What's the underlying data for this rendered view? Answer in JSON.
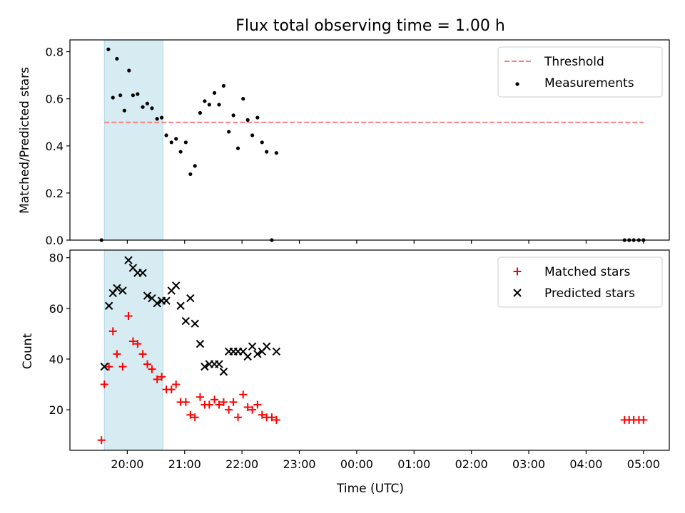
{
  "title": "Flux total observing time = 1.00 h",
  "chart_data": [
    {
      "type": "scatter",
      "panel": "top",
      "title": "Flux total observing time = 1.00 h",
      "xlabel": "",
      "ylabel": "Matched/Predicted stars",
      "x_unit": "hours UTC (values past 24 are the following day)",
      "xlim": [
        19.0,
        29.45
      ],
      "ylim": [
        0,
        0.85
      ],
      "yticks": [
        0.0,
        0.2,
        0.4,
        0.6,
        0.8
      ],
      "ytick_labels": [
        "0.0",
        "0.2",
        "0.4",
        "0.6",
        "0.8"
      ],
      "grid": false,
      "legend": "top-right",
      "shaded_span": [
        19.6,
        20.62
      ],
      "threshold": {
        "name": "Threshold",
        "value": 0.5,
        "x": [
          19.6,
          29.0
        ],
        "color": "#ff7f7f",
        "style": "dashed"
      },
      "series": [
        {
          "name": "Measurements",
          "color": "#000000",
          "marker": "dot",
          "points": [
            [
              19.55,
              0.0
            ],
            [
              19.67,
              0.81
            ],
            [
              19.75,
              0.605
            ],
            [
              19.82,
              0.77
            ],
            [
              19.88,
              0.615
            ],
            [
              19.95,
              0.55
            ],
            [
              20.03,
              0.72
            ],
            [
              20.1,
              0.615
            ],
            [
              20.18,
              0.62
            ],
            [
              20.27,
              0.565
            ],
            [
              20.35,
              0.58
            ],
            [
              20.43,
              0.56
            ],
            [
              20.52,
              0.515
            ],
            [
              20.6,
              0.52
            ],
            [
              20.68,
              0.445
            ],
            [
              20.77,
              0.415
            ],
            [
              20.85,
              0.43
            ],
            [
              20.93,
              0.375
            ],
            [
              21.02,
              0.415
            ],
            [
              21.1,
              0.28
            ],
            [
              21.18,
              0.315
            ],
            [
              21.27,
              0.54
            ],
            [
              21.35,
              0.59
            ],
            [
              21.43,
              0.575
            ],
            [
              21.52,
              0.625
            ],
            [
              21.6,
              0.575
            ],
            [
              21.68,
              0.655
            ],
            [
              21.77,
              0.46
            ],
            [
              21.85,
              0.53
            ],
            [
              21.93,
              0.39
            ],
            [
              22.02,
              0.6
            ],
            [
              22.1,
              0.51
            ],
            [
              22.18,
              0.445
            ],
            [
              22.27,
              0.52
            ],
            [
              22.35,
              0.415
            ],
            [
              22.43,
              0.375
            ],
            [
              22.52,
              0.0
            ],
            [
              22.6,
              0.37
            ],
            [
              28.67,
              0.0
            ],
            [
              28.75,
              0.0
            ],
            [
              28.83,
              0.0
            ],
            [
              28.92,
              0.0
            ],
            [
              29.0,
              0.0
            ]
          ]
        }
      ]
    },
    {
      "type": "scatter",
      "panel": "bottom",
      "xlabel": "Time (UTC)",
      "ylabel": "Count",
      "x_unit": "hours UTC (values past 24 are the following day)",
      "xlim": [
        19.0,
        29.45
      ],
      "ylim": [
        4,
        83
      ],
      "xticks": [
        20,
        21,
        22,
        23,
        24,
        25,
        26,
        27,
        28,
        29
      ],
      "xtick_labels": [
        "20:00",
        "21:00",
        "22:00",
        "23:00",
        "00:00",
        "01:00",
        "02:00",
        "03:00",
        "04:00",
        "05:00"
      ],
      "yticks": [
        20,
        40,
        60,
        80
      ],
      "ytick_labels": [
        "20",
        "40",
        "60",
        "80"
      ],
      "grid": false,
      "legend": "top-right",
      "shaded_span": [
        19.6,
        20.62
      ],
      "series": [
        {
          "name": "Matched stars",
          "color": "#ff0000",
          "marker": "plus",
          "points": [
            [
              19.55,
              8
            ],
            [
              19.6,
              30
            ],
            [
              19.68,
              37
            ],
            [
              19.75,
              51
            ],
            [
              19.82,
              42
            ],
            [
              19.92,
              37
            ],
            [
              20.02,
              57
            ],
            [
              20.1,
              47
            ],
            [
              20.18,
              46
            ],
            [
              20.27,
              42
            ],
            [
              20.35,
              38
            ],
            [
              20.43,
              36
            ],
            [
              20.52,
              32
            ],
            [
              20.6,
              33
            ],
            [
              20.68,
              28
            ],
            [
              20.77,
              28
            ],
            [
              20.85,
              30
            ],
            [
              20.93,
              23
            ],
            [
              21.02,
              23
            ],
            [
              21.1,
              18
            ],
            [
              21.18,
              17
            ],
            [
              21.27,
              25
            ],
            [
              21.35,
              22
            ],
            [
              21.43,
              22
            ],
            [
              21.52,
              24
            ],
            [
              21.6,
              22
            ],
            [
              21.68,
              23
            ],
            [
              21.77,
              20
            ],
            [
              21.85,
              23
            ],
            [
              21.93,
              17
            ],
            [
              22.02,
              26
            ],
            [
              22.1,
              21
            ],
            [
              22.18,
              20
            ],
            [
              22.27,
              22
            ],
            [
              22.35,
              18
            ],
            [
              22.43,
              17
            ],
            [
              22.52,
              17
            ],
            [
              22.6,
              16
            ],
            [
              28.67,
              16
            ],
            [
              28.75,
              16
            ],
            [
              28.83,
              16
            ],
            [
              28.92,
              16
            ],
            [
              29.0,
              16
            ]
          ]
        },
        {
          "name": "Predicted stars",
          "color": "#000000",
          "marker": "x",
          "points": [
            [
              19.6,
              37
            ],
            [
              19.68,
              61
            ],
            [
              19.75,
              66
            ],
            [
              19.82,
              68
            ],
            [
              19.92,
              67
            ],
            [
              20.02,
              79
            ],
            [
              20.1,
              76
            ],
            [
              20.18,
              74
            ],
            [
              20.27,
              74
            ],
            [
              20.35,
              65
            ],
            [
              20.43,
              64
            ],
            [
              20.52,
              62
            ],
            [
              20.6,
              63
            ],
            [
              20.68,
              63
            ],
            [
              20.77,
              67
            ],
            [
              20.85,
              69
            ],
            [
              20.93,
              61
            ],
            [
              21.02,
              55
            ],
            [
              21.1,
              64
            ],
            [
              21.18,
              54
            ],
            [
              21.27,
              46
            ],
            [
              21.35,
              37
            ],
            [
              21.43,
              38
            ],
            [
              21.52,
              38
            ],
            [
              21.6,
              38
            ],
            [
              21.68,
              35
            ],
            [
              21.77,
              43
            ],
            [
              21.85,
              43
            ],
            [
              21.93,
              43
            ],
            [
              22.02,
              43
            ],
            [
              22.1,
              41
            ],
            [
              22.18,
              45
            ],
            [
              22.27,
              42
            ],
            [
              22.35,
              43
            ],
            [
              22.43,
              45
            ],
            [
              22.6,
              43
            ]
          ]
        }
      ]
    }
  ]
}
